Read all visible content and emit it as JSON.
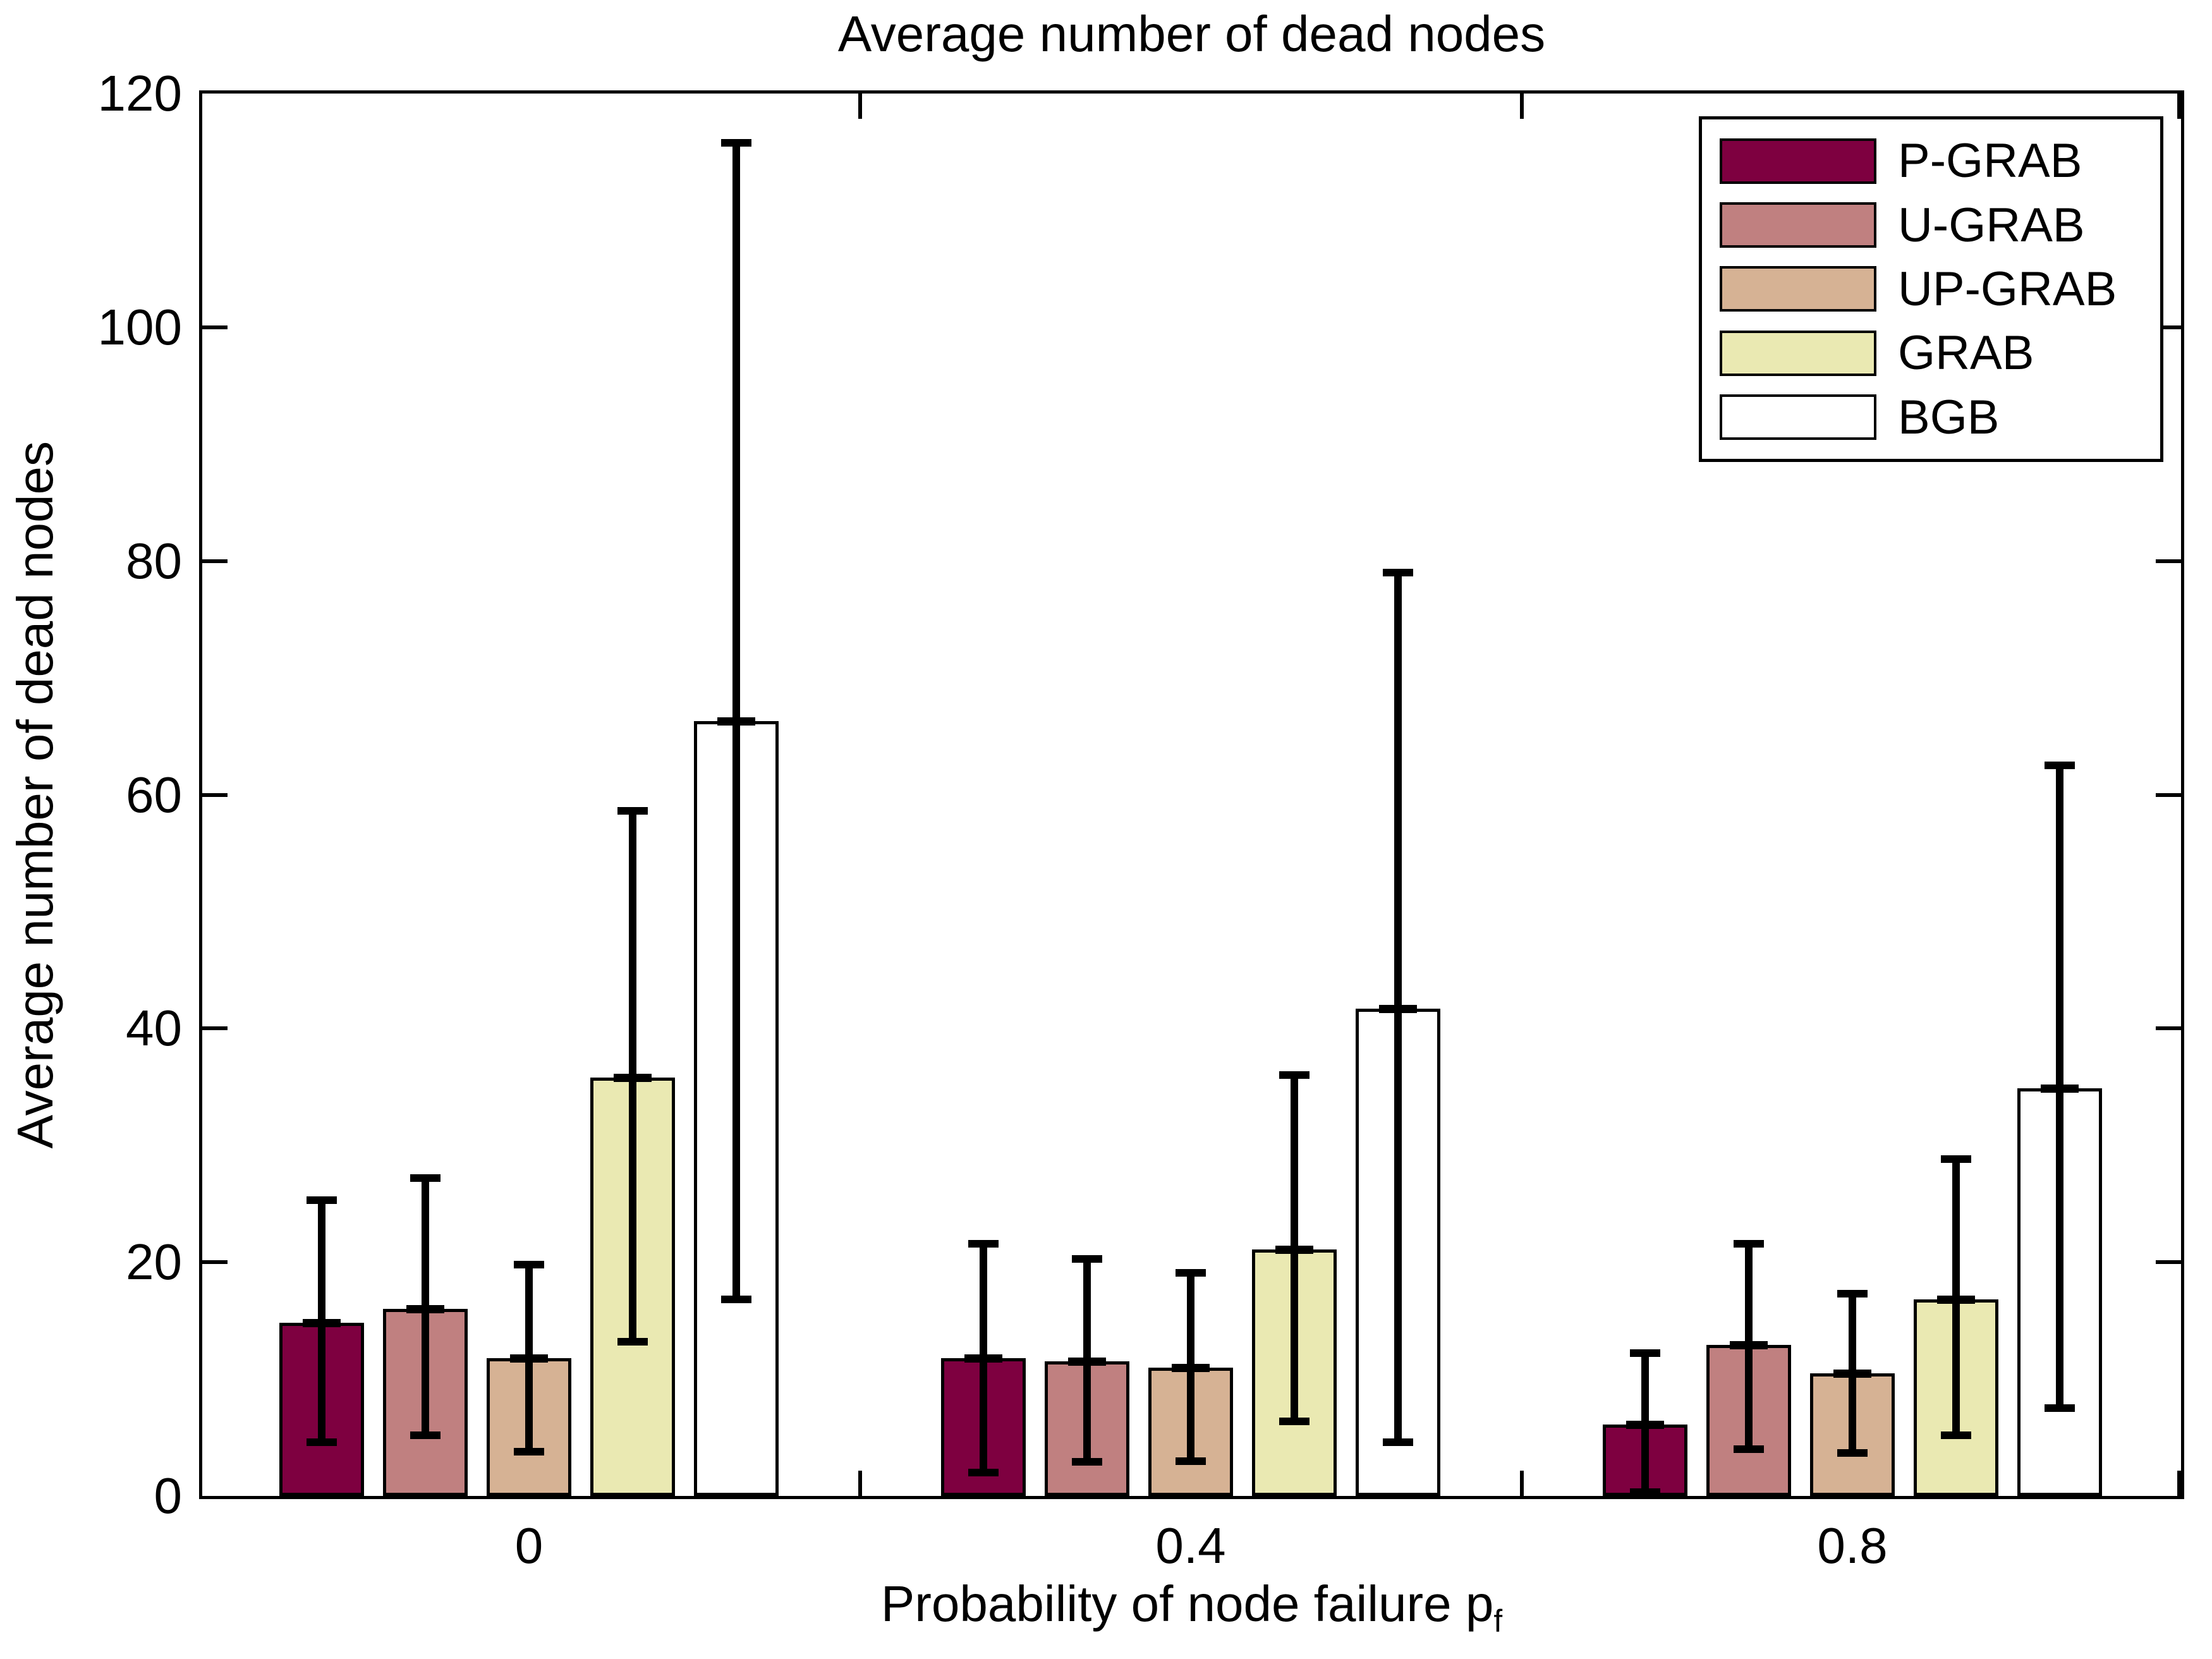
{
  "figure": {
    "title": "Average number of dead nodes",
    "ylabel": "Average number of dead nodes",
    "xlabel_base": "Probability of node failure p",
    "xlabel_sub": "f"
  },
  "chart_data": {
    "type": "bar",
    "title": "Average number of dead nodes",
    "xlabel": "Probability of node failure p_f",
    "ylabel": "Average number of dead nodes",
    "categories": [
      "0",
      "0.4",
      "0.8"
    ],
    "ylim": [
      0,
      120
    ],
    "yticks": [
      0,
      20,
      40,
      60,
      80,
      100,
      120
    ],
    "minor_xticks": [
      0.2,
      0.6,
      1.0
    ],
    "grid": false,
    "legend_position": "top-right",
    "error_bars": true,
    "series": [
      {
        "name": "P-GRAB",
        "color": "#7E0040",
        "values": [
          14.8,
          11.8,
          6.1
        ],
        "err_low": [
          4.6,
          2.0,
          0.3
        ],
        "err_high": [
          25.3,
          21.6,
          12.2
        ]
      },
      {
        "name": "U-GRAB",
        "color": "#C08080",
        "values": [
          16.0,
          11.5,
          12.9
        ],
        "err_low": [
          5.2,
          2.9,
          4.0
        ],
        "err_high": [
          27.2,
          20.3,
          21.6
        ]
      },
      {
        "name": "UP-GRAB",
        "color": "#D6B294",
        "values": [
          11.8,
          11.0,
          10.5
        ],
        "err_low": [
          3.8,
          3.0,
          3.7
        ],
        "err_high": [
          19.8,
          19.1,
          17.3
        ]
      },
      {
        "name": "GRAB",
        "color": "#EAE9B2",
        "values": [
          35.8,
          21.1,
          16.8
        ],
        "err_low": [
          13.2,
          6.4,
          5.2
        ],
        "err_high": [
          58.6,
          36.0,
          28.8
        ]
      },
      {
        "name": "BGB",
        "color": "#FFFFFF",
        "values": [
          66.3,
          41.7,
          34.9
        ],
        "err_low": [
          16.8,
          4.6,
          7.5
        ],
        "err_high": [
          115.8,
          79.0,
          62.5
        ]
      }
    ]
  }
}
